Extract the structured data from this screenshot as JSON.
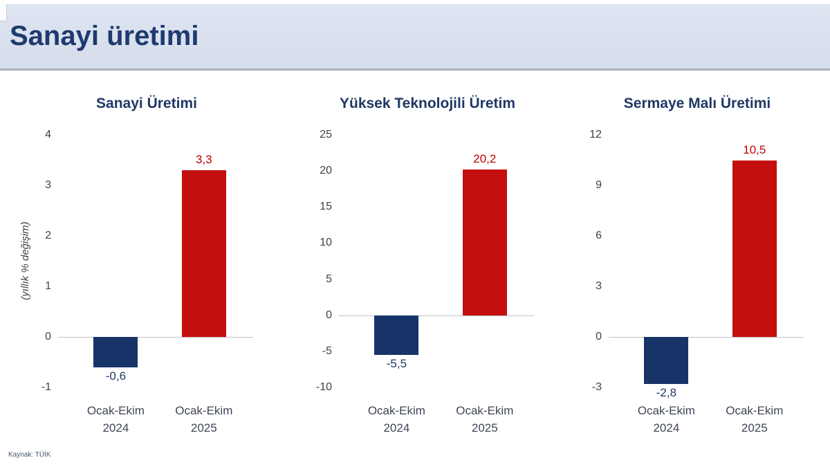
{
  "header": {
    "title": "Sanayi üretimi"
  },
  "footer": {
    "source": "Kaynak: TÜİK"
  },
  "colors": {
    "header_bg": "#dae1ee",
    "title_text": "#1e3a6e",
    "navy_bar": "#173469",
    "red_bar": "#c40f0f",
    "red_label": "#c00000",
    "navy_label": "#1f3864",
    "tick_text": "#404048",
    "axis_line": "#c3c3c3"
  },
  "chart_data": [
    {
      "type": "bar",
      "title": "Sanayi Üretimi",
      "categories": [
        [
          "Ocak-Ekim",
          "2024"
        ],
        [
          "Ocak-Ekim",
          "2025"
        ]
      ],
      "values": [
        -0.6,
        3.3
      ],
      "value_labels": [
        "-0,6",
        "3,3"
      ],
      "bar_colors": [
        "navy",
        "red"
      ],
      "ylabel": "(yıllık % değişim)",
      "ylim": [
        -1,
        4
      ],
      "yticks": [
        4,
        3,
        2,
        1,
        0,
        -1
      ],
      "grid": false,
      "legend": "none"
    },
    {
      "type": "bar",
      "title": "Yüksek Teknolojili Üretim",
      "categories": [
        [
          "Ocak-Ekim",
          "2024"
        ],
        [
          "Ocak-Ekim",
          "2025"
        ]
      ],
      "values": [
        -5.5,
        20.2
      ],
      "value_labels": [
        "-5,5",
        "20,2"
      ],
      "bar_colors": [
        "navy",
        "red"
      ],
      "ylabel": "",
      "ylim": [
        -10,
        25
      ],
      "yticks": [
        25,
        20,
        15,
        10,
        5,
        0,
        -5,
        -10
      ],
      "grid": false,
      "legend": "none"
    },
    {
      "type": "bar",
      "title": "Sermaye Malı Üretimi",
      "categories": [
        [
          "Ocak-Ekim",
          "2024"
        ],
        [
          "Ocak-Ekim",
          "2025"
        ]
      ],
      "values": [
        -2.8,
        10.5
      ],
      "value_labels": [
        "-2,8",
        "10,5"
      ],
      "bar_colors": [
        "navy",
        "red"
      ],
      "ylabel": "",
      "ylim": [
        -3,
        12
      ],
      "yticks": [
        12,
        9,
        6,
        3,
        0,
        -3
      ],
      "grid": false,
      "legend": "none"
    }
  ]
}
